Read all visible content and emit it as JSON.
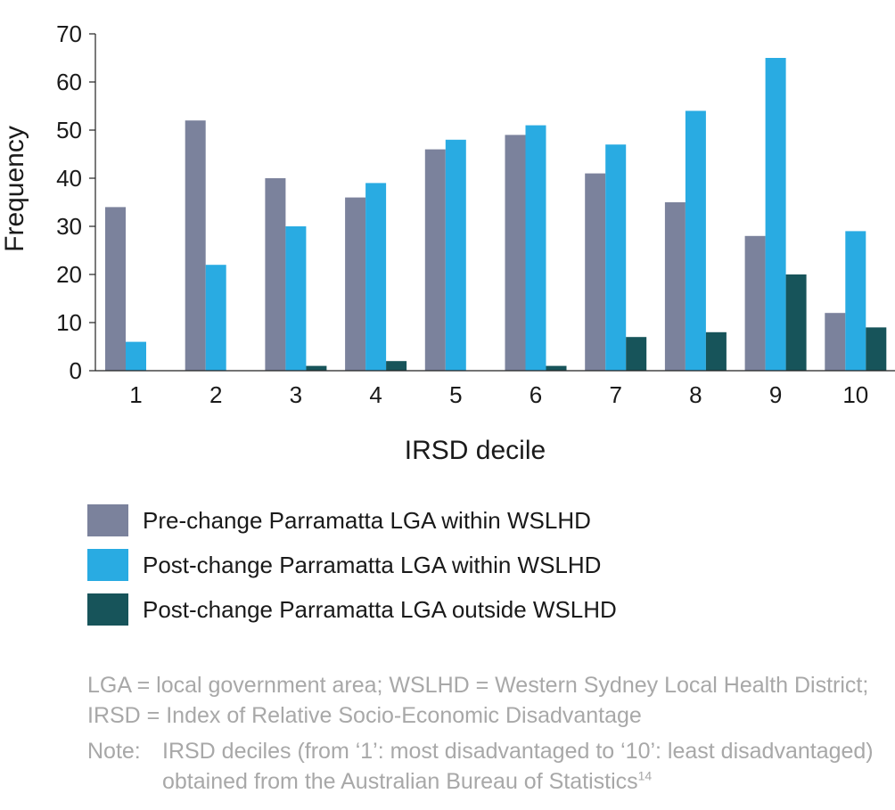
{
  "chart_data": {
    "type": "bar",
    "xlabel": "IRSD decile",
    "ylabel": "Frequency",
    "ylim": [
      0,
      70
    ],
    "yticks": [
      0,
      10,
      20,
      30,
      40,
      50,
      60,
      70
    ],
    "grid": false,
    "categories": [
      "1",
      "2",
      "3",
      "4",
      "5",
      "6",
      "7",
      "8",
      "9",
      "10"
    ],
    "series": [
      {
        "name": "Pre-change Parramatta LGA within WSLHD",
        "color": "#7b829c",
        "values": [
          34,
          52,
          40,
          36,
          46,
          49,
          41,
          35,
          28,
          12
        ]
      },
      {
        "name": "Post-change Parramatta LGA within WSLHD",
        "color": "#29abe2",
        "values": [
          6,
          22,
          30,
          39,
          48,
          51,
          47,
          54,
          65,
          29
        ]
      },
      {
        "name": "Post-change Parramatta LGA outside WSLHD",
        "color": "#17545a",
        "values": [
          0,
          0,
          1,
          2,
          0,
          1,
          7,
          8,
          20,
          9
        ]
      }
    ],
    "legend_position": "below"
  },
  "notes": {
    "abbreviations": "LGA = local government area; WSLHD = Western Sydney Local Health District; IRSD = Index of Relative Socio-Economic Disadvantage",
    "note_label": "Note:",
    "note_text": "IRSD deciles (from ‘1’: most disadvantaged to ‘10’: least disadvantaged) obtained from the Australian Bureau of Statistics",
    "reference": "14"
  }
}
